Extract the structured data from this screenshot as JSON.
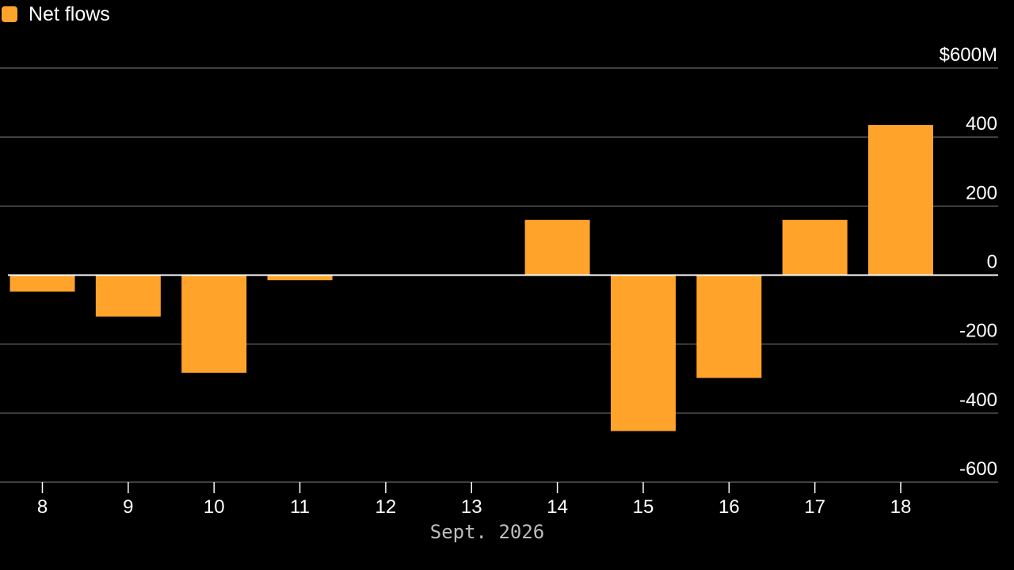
{
  "legend": {
    "label": "Net flows",
    "color": "#ffa32b"
  },
  "chart_data": {
    "type": "bar",
    "categories": [
      "8",
      "9",
      "10",
      "11",
      "12",
      "13",
      "14",
      "15",
      "16",
      "17",
      "18"
    ],
    "series": [
      {
        "name": "Net flows",
        "values": [
          -48,
          -120,
          -283,
          -15,
          0,
          0,
          160,
          -452,
          -298,
          160,
          435
        ],
        "color": "#ffa32b"
      }
    ],
    "xlabel": "Sept. 2026",
    "ylabel": "",
    "ylim": [
      -600,
      600
    ],
    "yticks": [
      600,
      400,
      200,
      0,
      -200,
      -400,
      -600
    ],
    "ytick_labels": [
      "$600M",
      "400",
      "200",
      "0",
      "-200",
      "-400",
      "-600"
    ],
    "grid": true,
    "legend_position": "top-left",
    "colors": {
      "background": "#000000",
      "grid": "#555555",
      "zero_line": "#ffffff",
      "text": "#ffffff",
      "xlabel_text": "#bdbdbd"
    }
  }
}
